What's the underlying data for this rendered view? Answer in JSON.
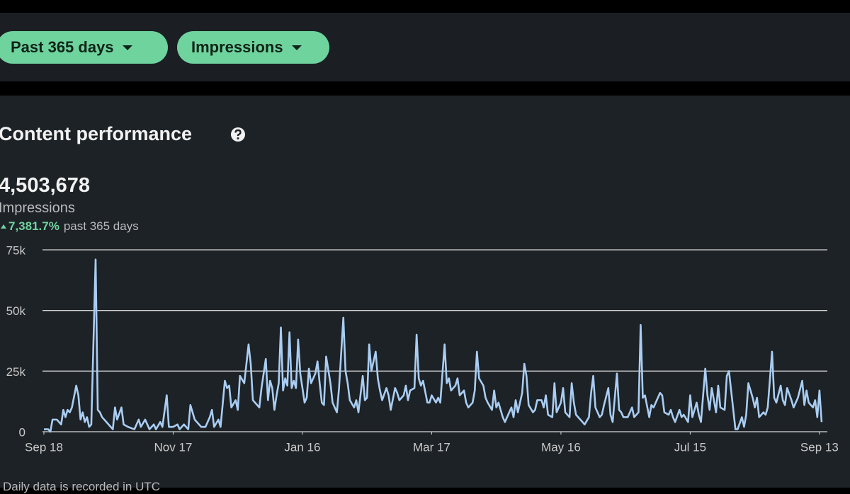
{
  "filters": [
    {
      "label": "Past 365 days"
    },
    {
      "label": "Impressions"
    }
  ],
  "section": {
    "title": "Content performance",
    "total": "4,503,678",
    "metric": "Impressions",
    "change": "7,381.7%",
    "period": "past 365 days",
    "footnote": "Daily data is recorded in UTC"
  },
  "chart_data": {
    "type": "line",
    "color": "#a9cdf3",
    "grid": true,
    "x": [
      0,
      2,
      3,
      4,
      6,
      8,
      9,
      10,
      11,
      12,
      13,
      15,
      16,
      17,
      18,
      19,
      20,
      21,
      22,
      24,
      25,
      26,
      27,
      29,
      31,
      32,
      33,
      34,
      36,
      37,
      39,
      42,
      44,
      45,
      47,
      49,
      51,
      52,
      54,
      55,
      57,
      58,
      60,
      62,
      63,
      65,
      67,
      68,
      70,
      72,
      73,
      75,
      77,
      78,
      79,
      81,
      82,
      84,
      85,
      86,
      87,
      89,
      90,
      91,
      93,
      95,
      96,
      97,
      98,
      100,
      101,
      103,
      104,
      105,
      106,
      107,
      108,
      109,
      110,
      111,
      112,
      113,
      114,
      115,
      116,
      117,
      118,
      119,
      121,
      122,
      123,
      124,
      126,
      127,
      128,
      129,
      130,
      131,
      133,
      134,
      135,
      136,
      137,
      139,
      140,
      141,
      142,
      144,
      145,
      146,
      148,
      149,
      150,
      151,
      152,
      154,
      155,
      156,
      157,
      159,
      160,
      161,
      163,
      164,
      165,
      167,
      168,
      169,
      170,
      172,
      173,
      174,
      175,
      176,
      178,
      179,
      180,
      182,
      183,
      184,
      186,
      187,
      188,
      189,
      191,
      192,
      193,
      195,
      196,
      197,
      199,
      200,
      201,
      202,
      204,
      205,
      206,
      208,
      209,
      210,
      211,
      213,
      214,
      215,
      217,
      218,
      219,
      220,
      222,
      223,
      224,
      225,
      227,
      228,
      229,
      231,
      232,
      233,
      234,
      236,
      237,
      238,
      240,
      241,
      242,
      244,
      245,
      246,
      247,
      249,
      250,
      251,
      253,
      254,
      255,
      256,
      258,
      259,
      260,
      262,
      263,
      264,
      266,
      267,
      268,
      269,
      271,
      272,
      273,
      274,
      276,
      277,
      278,
      279,
      281,
      282,
      283,
      284,
      286,
      287,
      288,
      290,
      291,
      292,
      293,
      295,
      296,
      297,
      299,
      300,
      301,
      303,
      304,
      305,
      307,
      308,
      309,
      310,
      312,
      313,
      314,
      316,
      317,
      318,
      320,
      321,
      322,
      324,
      325,
      326,
      327,
      329,
      330,
      331,
      332,
      334,
      335,
      336,
      338,
      339,
      340,
      342,
      343,
      344,
      345,
      347,
      348,
      349,
      350,
      352,
      353,
      354,
      355,
      357,
      358,
      359,
      360,
      361
    ],
    "values": [
      1000,
      1000,
      0,
      5000,
      5000,
      3000,
      9000,
      6000,
      9000,
      8000,
      10000,
      19000,
      15000,
      5000,
      8000,
      4000,
      6000,
      2000,
      3000,
      71000,
      9000,
      8000,
      6000,
      4000,
      2000,
      1000,
      10000,
      5000,
      10000,
      3000,
      2000,
      1000,
      5000,
      2000,
      5000,
      1000,
      3000,
      1000,
      4000,
      2000,
      15000,
      2000,
      2000,
      3000,
      1000,
      3000,
      1000,
      11000,
      5000,
      3000,
      2000,
      2000,
      6000,
      9000,
      2000,
      5000,
      2000,
      21000,
      18000,
      19000,
      10000,
      13000,
      9000,
      23000,
      20000,
      36000,
      28000,
      13000,
      12000,
      10000,
      18000,
      30000,
      13000,
      21000,
      18000,
      9000,
      15000,
      20000,
      43000,
      17000,
      22000,
      19000,
      41000,
      18000,
      21000,
      18000,
      38000,
      24000,
      12000,
      14000,
      26000,
      20000,
      24000,
      29000,
      20000,
      12000,
      11000,
      31000,
      20000,
      12000,
      10000,
      8000,
      18000,
      47000,
      25000,
      20000,
      13000,
      10000,
      13000,
      8000,
      23000,
      13000,
      14000,
      36000,
      25000,
      33000,
      22000,
      17000,
      13000,
      18000,
      15000,
      9000,
      18000,
      16000,
      13000,
      15000,
      19000,
      13000,
      17000,
      18000,
      40000,
      22000,
      19000,
      21000,
      12000,
      12000,
      15000,
      12000,
      14000,
      12000,
      36000,
      20000,
      22000,
      17000,
      19000,
      22000,
      15000,
      17000,
      12000,
      10000,
      12000,
      17000,
      33000,
      22000,
      19000,
      14000,
      12000,
      9000,
      17000,
      10000,
      12000,
      6000,
      4000,
      6000,
      10000,
      6000,
      13000,
      8000,
      16000,
      28000,
      23000,
      11000,
      8000,
      9000,
      13000,
      13000,
      10000,
      15000,
      7000,
      6000,
      20000,
      8000,
      12000,
      18000,
      8000,
      6000,
      20000,
      12000,
      7000,
      5000,
      4000,
      3000,
      6000,
      16000,
      23000,
      10000,
      6000,
      7000,
      11000,
      18000,
      7000,
      4000,
      24000,
      9000,
      8000,
      6000,
      6000,
      8000,
      10000,
      6000,
      8000,
      44000,
      14000,
      15000,
      6000,
      11000,
      10000,
      12000,
      16000,
      15000,
      8000,
      7000,
      9000,
      6000,
      4000,
      9000,
      6000,
      7000,
      4000,
      15000,
      6000,
      12000,
      7000,
      4000,
      26000,
      15000,
      9000,
      18000,
      8000,
      19000,
      10000,
      9000,
      23000,
      25000,
      9000,
      1000,
      1000,
      6000,
      2000,
      7000,
      20000,
      14000,
      10000,
      14000,
      6000,
      8000,
      7000,
      10000,
      33000,
      14000,
      12000,
      19000,
      13000,
      11000,
      18000,
      13000,
      10000,
      12000,
      14000,
      21000,
      11000,
      17000,
      12000,
      10000,
      13000,
      6000,
      17000,
      4000
    ],
    "xlim": [
      0,
      363
    ],
    "xticks": [
      {
        "value": 0,
        "label": "Sep 18"
      },
      {
        "value": 60,
        "label": "Nov 17"
      },
      {
        "value": 120,
        "label": "Jan 16"
      },
      {
        "value": 180,
        "label": "Mar 17"
      },
      {
        "value": 240,
        "label": "May 16"
      },
      {
        "value": 300,
        "label": "Jul 15"
      },
      {
        "value": 360,
        "label": "Sep 13"
      }
    ],
    "ylim": [
      0,
      75000
    ],
    "yticks": [
      0,
      {
        "value": 25000,
        "label": "25k"
      },
      {
        "value": 50000,
        "label": "50k"
      },
      {
        "value": 75000,
        "label": "75k"
      }
    ]
  }
}
